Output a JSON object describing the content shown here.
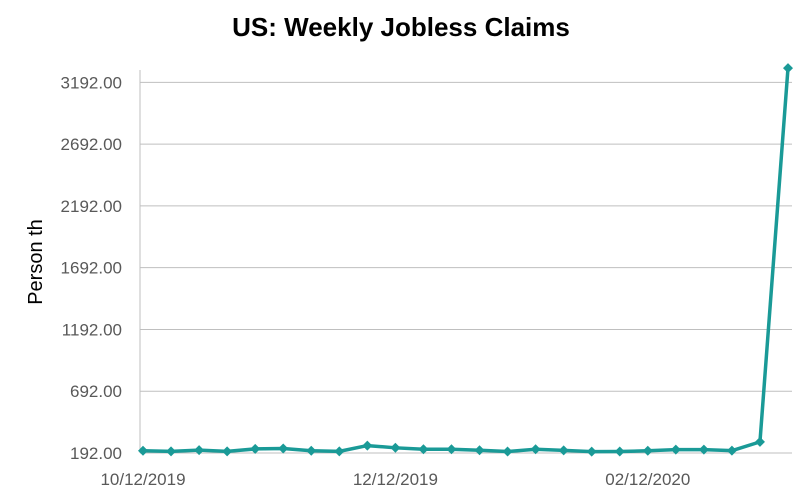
{
  "chart_data": {
    "type": "line",
    "title": "US: Weekly Jobless Claims",
    "ylabel": "Person th",
    "xlabel": "",
    "ylim": [
      192,
      3292
    ],
    "yticks": [
      192,
      692,
      1192,
      1692,
      2192,
      2692,
      3192
    ],
    "ytick_labels": [
      "192.00",
      "692.00",
      "1192.00",
      "1692.00",
      "2192.00",
      "2692.00",
      "3192.00"
    ],
    "x": [
      "2019-10-12",
      "2019-10-19",
      "2019-10-26",
      "2019-11-02",
      "2019-11-09",
      "2019-11-16",
      "2019-11-23",
      "2019-11-30",
      "2019-12-07",
      "2019-12-14",
      "2019-12-21",
      "2019-12-28",
      "2020-01-04",
      "2020-01-11",
      "2020-01-18",
      "2020-01-25",
      "2020-02-01",
      "2020-02-08",
      "2020-02-15",
      "2020-02-22",
      "2020-02-29",
      "2020-03-07",
      "2020-03-14",
      "2020-03-21"
    ],
    "xtick_labels": [
      {
        "index": 0,
        "label": "10/12/2019"
      },
      {
        "index": 9,
        "label": "12/12/2019"
      },
      {
        "index": 18,
        "label": "02/12/2020"
      }
    ],
    "series": [
      {
        "values": [
          210,
          205,
          215,
          205,
          225,
          228,
          210,
          205,
          252,
          234,
          222,
          222,
          214,
          204,
          222,
          213,
          203,
          204,
          210,
          219,
          219,
          211,
          282,
          3307
        ]
      }
    ],
    "colors": {
      "line": "#1a9a97",
      "title": "#7b2c84",
      "axis_text": "#595959",
      "grid": "#bfbfbf"
    },
    "grid": true,
    "legend": "none",
    "marker": "diamond"
  }
}
